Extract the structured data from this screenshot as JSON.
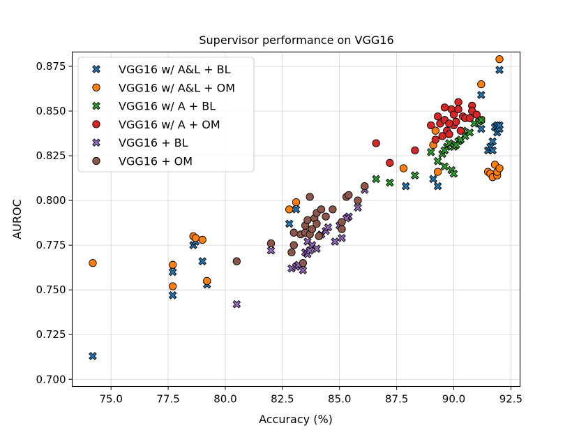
{
  "chart_data": {
    "type": "scatter",
    "title": "Supervisor performance on VGG16",
    "xlabel": "Accuracy (%)",
    "ylabel": "AUROC",
    "xlim": [
      73.3,
      92.9
    ],
    "ylim": [
      0.696,
      0.883
    ],
    "xticks": [
      "75.0",
      "77.5",
      "80.0",
      "82.5",
      "85.0",
      "87.5",
      "90.0",
      "92.5"
    ],
    "yticks": [
      "0.700",
      "0.725",
      "0.750",
      "0.775",
      "0.800",
      "0.825",
      "0.850",
      "0.875"
    ],
    "grid": true,
    "legend_position": "top-left",
    "series": [
      {
        "name": "VGG16 w/ A&L + BL",
        "marker": "x",
        "color": "#1f77b4",
        "points": [
          [
            74.2,
            0.713
          ],
          [
            77.7,
            0.747
          ],
          [
            77.7,
            0.76
          ],
          [
            78.6,
            0.775
          ],
          [
            78.7,
            0.777
          ],
          [
            79.0,
            0.766
          ],
          [
            79.2,
            0.753
          ],
          [
            82.8,
            0.787
          ],
          [
            83.1,
            0.795
          ],
          [
            87.9,
            0.808
          ],
          [
            89.1,
            0.812
          ],
          [
            89.3,
            0.808
          ],
          [
            91.2,
            0.84
          ],
          [
            91.2,
            0.859
          ],
          [
            91.5,
            0.828
          ],
          [
            91.6,
            0.83
          ],
          [
            91.7,
            0.833
          ],
          [
            91.7,
            0.828
          ],
          [
            91.8,
            0.841
          ],
          [
            91.9,
            0.842
          ],
          [
            91.9,
            0.838
          ],
          [
            92.0,
            0.84
          ],
          [
            92.0,
            0.842
          ],
          [
            92.0,
            0.873
          ]
        ]
      },
      {
        "name": "VGG16 w/ A&L + OM",
        "marker": "o",
        "color": "#ff7f0e",
        "points": [
          [
            74.2,
            0.765
          ],
          [
            77.7,
            0.764
          ],
          [
            77.7,
            0.752
          ],
          [
            78.6,
            0.78
          ],
          [
            78.7,
            0.779
          ],
          [
            79.0,
            0.778
          ],
          [
            79.2,
            0.755
          ],
          [
            82.8,
            0.795
          ],
          [
            83.1,
            0.799
          ],
          [
            87.8,
            0.818
          ],
          [
            89.1,
            0.831
          ],
          [
            89.2,
            0.839
          ],
          [
            89.3,
            0.816
          ],
          [
            91.2,
            0.865
          ],
          [
            91.2,
            0.845
          ],
          [
            91.5,
            0.816
          ],
          [
            91.6,
            0.815
          ],
          [
            91.7,
            0.813
          ],
          [
            91.8,
            0.82
          ],
          [
            91.9,
            0.814
          ],
          [
            91.9,
            0.816
          ],
          [
            92.0,
            0.818
          ],
          [
            92.0,
            0.879
          ]
        ]
      },
      {
        "name": "VGG16 w/ A + BL",
        "marker": "x",
        "color": "#2ca02c",
        "points": [
          [
            86.6,
            0.812
          ],
          [
            87.2,
            0.81
          ],
          [
            88.3,
            0.814
          ],
          [
            89.0,
            0.827
          ],
          [
            89.3,
            0.822
          ],
          [
            89.5,
            0.826
          ],
          [
            89.6,
            0.819
          ],
          [
            89.7,
            0.83
          ],
          [
            89.8,
            0.832
          ],
          [
            89.9,
            0.817
          ],
          [
            90.0,
            0.815
          ],
          [
            90.0,
            0.83
          ],
          [
            90.2,
            0.833
          ],
          [
            90.3,
            0.834
          ],
          [
            90.5,
            0.836
          ],
          [
            90.7,
            0.838
          ],
          [
            90.9,
            0.843
          ],
          [
            91.1,
            0.844
          ],
          [
            91.2,
            0.845
          ],
          [
            89.6,
            0.828
          ],
          [
            90.1,
            0.831
          ],
          [
            90.4,
            0.839
          ]
        ]
      },
      {
        "name": "VGG16 w/ A + OM",
        "marker": "o",
        "color": "#d62728",
        "points": [
          [
            86.6,
            0.832
          ],
          [
            87.2,
            0.821
          ],
          [
            88.3,
            0.828
          ],
          [
            89.0,
            0.842
          ],
          [
            89.2,
            0.834
          ],
          [
            89.3,
            0.847
          ],
          [
            89.4,
            0.843
          ],
          [
            89.5,
            0.836
          ],
          [
            89.6,
            0.852
          ],
          [
            89.6,
            0.845
          ],
          [
            89.7,
            0.839
          ],
          [
            89.8,
            0.837
          ],
          [
            89.9,
            0.851
          ],
          [
            90.0,
            0.842
          ],
          [
            90.0,
            0.848
          ],
          [
            90.1,
            0.844
          ],
          [
            90.2,
            0.851
          ],
          [
            90.2,
            0.855
          ],
          [
            90.3,
            0.839
          ],
          [
            90.4,
            0.847
          ],
          [
            90.5,
            0.846
          ],
          [
            90.7,
            0.846
          ],
          [
            90.8,
            0.853
          ],
          [
            90.8,
            0.85
          ],
          [
            91.0,
            0.848
          ],
          [
            89.8,
            0.843
          ]
        ]
      },
      {
        "name": "VGG16 + BL",
        "marker": "x",
        "color": "#9467bd",
        "points": [
          [
            80.5,
            0.742
          ],
          [
            82.0,
            0.772
          ],
          [
            82.9,
            0.762
          ],
          [
            83.1,
            0.763
          ],
          [
            83.2,
            0.764
          ],
          [
            83.4,
            0.761
          ],
          [
            83.5,
            0.771
          ],
          [
            83.6,
            0.77
          ],
          [
            83.6,
            0.777
          ],
          [
            83.7,
            0.772
          ],
          [
            83.8,
            0.775
          ],
          [
            84.0,
            0.773
          ],
          [
            84.2,
            0.781
          ],
          [
            84.4,
            0.783
          ],
          [
            84.5,
            0.785
          ],
          [
            84.8,
            0.777
          ],
          [
            85.0,
            0.786
          ],
          [
            85.1,
            0.779
          ],
          [
            85.4,
            0.791
          ],
          [
            85.8,
            0.796
          ],
          [
            86.1,
            0.806
          ],
          [
            85.3,
            0.79
          ]
        ]
      },
      {
        "name": "VGG16 + OM",
        "marker": "o",
        "color": "#8c564b",
        "points": [
          [
            80.5,
            0.766
          ],
          [
            82.0,
            0.776
          ],
          [
            82.9,
            0.771
          ],
          [
            83.0,
            0.775
          ],
          [
            83.0,
            0.782
          ],
          [
            83.3,
            0.781
          ],
          [
            83.4,
            0.765
          ],
          [
            83.5,
            0.782
          ],
          [
            83.5,
            0.786
          ],
          [
            83.6,
            0.789
          ],
          [
            83.7,
            0.781
          ],
          [
            83.7,
            0.802
          ],
          [
            83.8,
            0.784
          ],
          [
            83.9,
            0.79
          ],
          [
            84.0,
            0.787
          ],
          [
            84.0,
            0.793
          ],
          [
            84.1,
            0.78
          ],
          [
            84.2,
            0.795
          ],
          [
            84.4,
            0.791
          ],
          [
            84.7,
            0.795
          ],
          [
            85.1,
            0.784
          ],
          [
            85.1,
            0.788
          ],
          [
            85.3,
            0.802
          ],
          [
            85.4,
            0.803
          ],
          [
            85.8,
            0.8
          ],
          [
            86.1,
            0.808
          ]
        ]
      }
    ]
  }
}
